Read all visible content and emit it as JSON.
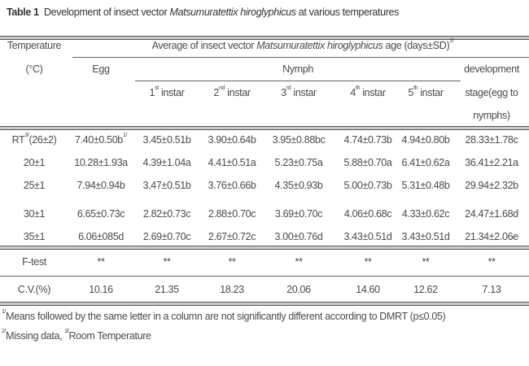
{
  "title": {
    "label": "Table 1",
    "pre": "Development of insect vector ",
    "species": "Matsumuratettix hiroglyphicus",
    "post": " at various temperatures"
  },
  "header": {
    "temperature": "Temperature",
    "unit": "(°C)",
    "average_pre": "Average of insect vector ",
    "average_species": "Matsumuratettix hiroglyphicus",
    "average_post": " age (days±SD)",
    "average_note": "2/",
    "egg": "Egg",
    "nymph": "Nymph",
    "instars": [
      {
        "n": "1",
        "sup": "st",
        "label": " instar"
      },
      {
        "n": "2",
        "sup": "nd",
        "label": " instar"
      },
      {
        "n": "3",
        "sup": "rd",
        "label": " instar"
      },
      {
        "n": "4",
        "sup": "th",
        "label": " instar"
      },
      {
        "n": "5",
        "sup": "th",
        "label": " instar"
      }
    ],
    "development": [
      "development",
      "stage(egg to",
      "nymphs)"
    ]
  },
  "rows": [
    {
      "temp": "RT",
      "temp_note": "3/",
      "temp_post": "(26±2)",
      "egg": "7.40±0.50b",
      "egg_note": "1/",
      "i1": "3.45±0.51b",
      "i2": "3.90±0.64b",
      "i3": "3.95±0.88bc",
      "i4": "4.74±0.73b",
      "i5": "4.94±0.80b",
      "dev": "28.33±1.78c"
    },
    {
      "temp": "20±1",
      "egg": "10.28±1.93a",
      "i1": "4.39±1.04a",
      "i2": "4.41±0.51a",
      "i3": "5.23±0.75a",
      "i4": "5.88±0.70a",
      "i5": "6.41±0.62a",
      "dev": "36.41±2.21a"
    },
    {
      "temp": "25±1",
      "egg": "7.94±0.94b",
      "i1": "3.47±0.51b",
      "i2": "3.76±0.66b",
      "i3": "4.35±0.93b",
      "i4": "5.00±0.73b",
      "i5": "5.31±0.48b",
      "dev": "29.94±2.32b"
    },
    {
      "temp": "30±1",
      "egg": "6.65±0.73c",
      "i1": "2.82±0.73c",
      "i2": "2.88±0.70c",
      "i3": "3.69±0.70c",
      "i4": "4.06±0.68c",
      "i5": "4.33±0.62c",
      "dev": "24.47±1.68d"
    },
    {
      "temp": "35±1",
      "egg": "6.06±085d",
      "i1": "2.69±0.70c",
      "i2": "2.67±0.72c",
      "i3": "3.00±0.76d",
      "i4": "3.43±0.51d",
      "i5": "3.43±0.51d",
      "dev": "21.34±2.06e"
    }
  ],
  "ftest": {
    "label": "F-test",
    "values": [
      "**",
      "**",
      "**",
      "**",
      "**",
      "**",
      "**"
    ]
  },
  "cv": {
    "label": "C.V.(%)",
    "values": [
      "10.16",
      "21.35",
      "18.23",
      "20.06",
      "14.60",
      "12.62",
      "7.13"
    ]
  },
  "footnotes": {
    "n1_mark": "1/",
    "n1": "Means followed by the same letter in a column are not significantly different according to DMRT (p≤0.05)",
    "n2_mark": "2/",
    "n2": "Missing data, ",
    "n3_mark": "3/",
    "n3": "Room Temperature"
  }
}
